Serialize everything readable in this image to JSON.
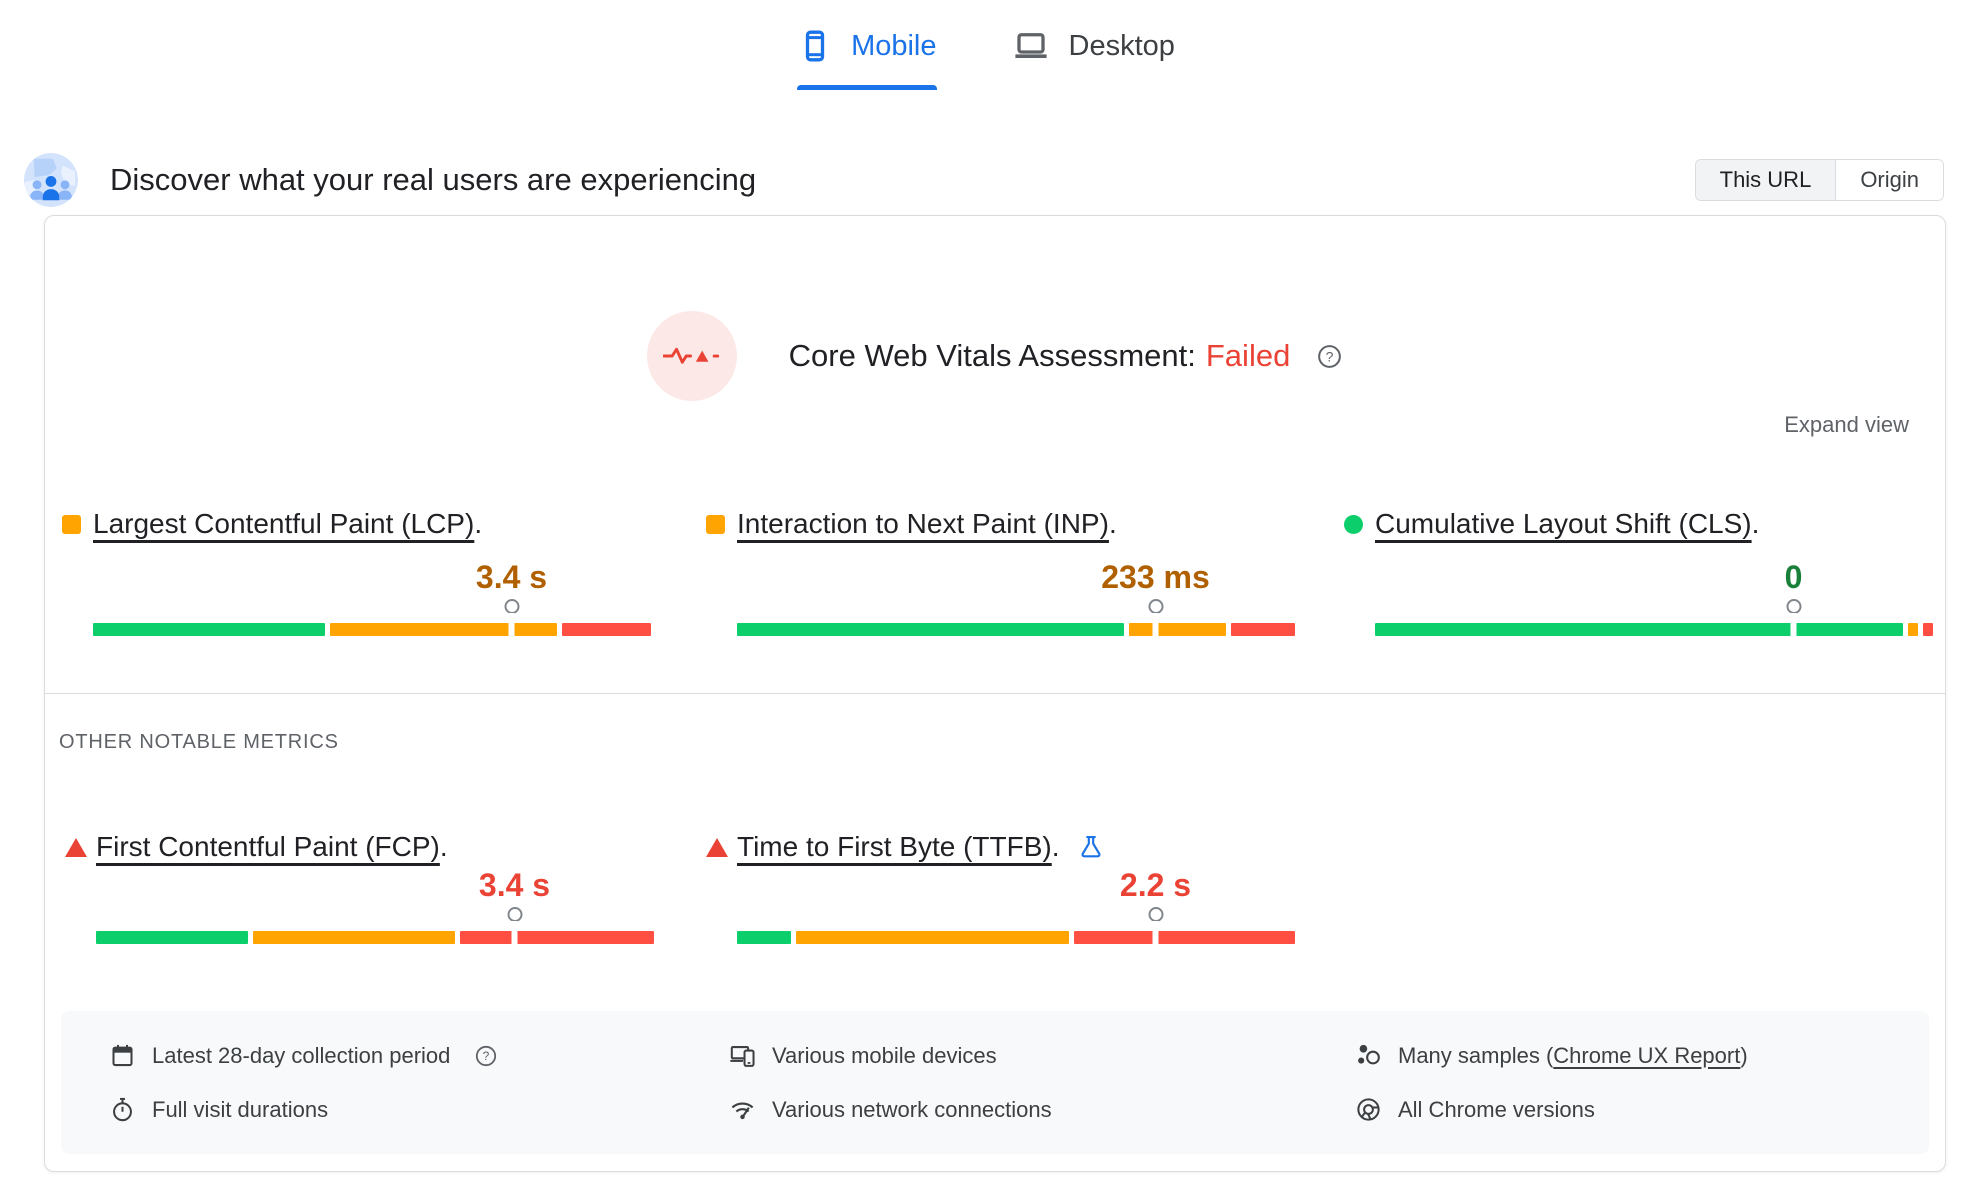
{
  "tabs": {
    "mobile": "Mobile",
    "desktop": "Desktop"
  },
  "header": {
    "title": "Discover what your real users are experiencing",
    "scope": {
      "this_url": "This URL",
      "origin": "Origin"
    }
  },
  "assessment": {
    "label": "Core Web Vitals Assessment:",
    "status": "Failed"
  },
  "actions": {
    "expand_view": "Expand view"
  },
  "sections": {
    "other_metrics": "OTHER NOTABLE METRICS"
  },
  "metrics": {
    "lcp": {
      "title": "Largest Contentful Paint (LCP)",
      "period": ".",
      "value": "3.4 s",
      "rating": "needs-improvement",
      "bullet": "orange-square",
      "distribution_pct": {
        "good": 42,
        "needs_improvement": 41,
        "poor": 16
      },
      "p75_marker_pct": 75
    },
    "inp": {
      "title": "Interaction to Next Paint (INP)",
      "period": ".",
      "value": "233 ms",
      "rating": "needs-improvement",
      "bullet": "orange-square",
      "distribution_pct": {
        "good": 70,
        "needs_improvement": 17.5,
        "poor": 11.5
      },
      "p75_marker_pct": 75
    },
    "cls": {
      "title": "Cumulative Layout Shift (CLS)",
      "period": ".",
      "value": "0",
      "rating": "good",
      "bullet": "green-circle",
      "distribution_pct": {
        "good": 95.5,
        "needs_improvement": 1.7,
        "poor": 1.9
      },
      "p75_marker_pct": 75
    },
    "fcp": {
      "title": "First Contentful Paint (FCP)",
      "period": ".",
      "value": "3.4 s",
      "rating": "poor",
      "bullet": "red-triangle",
      "distribution_pct": {
        "good": 27.5,
        "needs_improvement": 36.5,
        "poor": 35
      },
      "p75_marker_pct": 75
    },
    "ttfb": {
      "title": "Time to First Byte (TTFB)",
      "period": ".",
      "value": "2.2 s",
      "rating": "poor",
      "bullet": "red-triangle",
      "experimental": true,
      "distribution_pct": {
        "good": 9.7,
        "needs_improvement": 49.3,
        "poor": 40
      },
      "p75_marker_pct": 75
    }
  },
  "footer": {
    "collection_period": "Latest 28-day collection period",
    "visit_durations": "Full visit durations",
    "devices": "Various mobile devices",
    "connections": "Various network connections",
    "samples_prefix": "Many samples (",
    "samples_link": "Chrome UX Report",
    "samples_suffix": ")",
    "chrome_versions": "All Chrome versions"
  },
  "colors": {
    "good": "#0cce6b",
    "needs_improvement": "#ffa400",
    "poor": "#ff4e42",
    "value_good": "#188038",
    "value_needs_improvement": "#b06000",
    "value_poor": "#ea4335",
    "failed": "#ea4335",
    "accent_blue": "#1a73e8"
  }
}
